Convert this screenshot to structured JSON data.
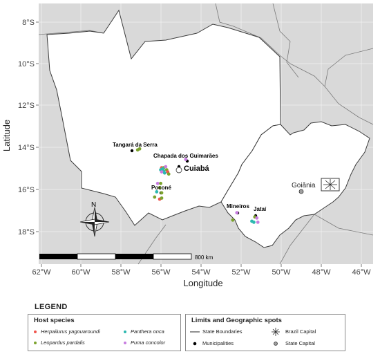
{
  "map": {
    "y_axis_title": "Latitude",
    "x_axis_title": "Longitude",
    "lat_ticks": [
      "8°S",
      "10°S",
      "12°S",
      "14°S",
      "16°S",
      "18°S"
    ],
    "lon_ticks": [
      "62°W",
      "60°W",
      "58°W",
      "56°W",
      "54°W",
      "52°W",
      "50°W",
      "48°W",
      "46°W"
    ],
    "colors": {
      "background": "#d9d9d9",
      "state": "#ffffff",
      "border": "#3a3a3a"
    },
    "places": [
      {
        "name": "Tangará da Serra",
        "lon": -57.5,
        "lat": -14.6
      },
      {
        "name": "Chapada dos Guimarães",
        "lon": -55.75,
        "lat": -15.45
      },
      {
        "name": "Cuiabá",
        "lon": -56.1,
        "lat": -15.6
      },
      {
        "name": "Poconé",
        "lon": -56.6,
        "lat": -16.25
      },
      {
        "name": "Mineiros",
        "lon": -52.55,
        "lat": -17.55
      },
      {
        "name": "Jataí",
        "lon": -51.7,
        "lat": -17.9
      },
      {
        "name": "Goiânia",
        "lon": -49.25,
        "lat": -16.7
      }
    ],
    "scale_bar_label": "800 km",
    "north_label": "N"
  },
  "occurrences": [
    {
      "species": "Leopardus pardalis",
      "lon": -57.2,
      "lat": -14.1
    },
    {
      "species": "Leopardus pardalis",
      "lon": -57.1,
      "lat": -14.05
    },
    {
      "species": "Herpailurus yagouaroundi",
      "lon": -56.0,
      "lat": -14.95
    },
    {
      "species": "Leopardus pardalis",
      "lon": -55.9,
      "lat": -14.95
    },
    {
      "species": "Puma concolor",
      "lon": -54.8,
      "lat": -14.55
    },
    {
      "species": "Panthera onca",
      "lon": -55.95,
      "lat": -15.0
    },
    {
      "species": "Panthera onca",
      "lon": -56.05,
      "lat": -15.05
    },
    {
      "species": "Puma concolor",
      "lon": -55.8,
      "lat": -14.9
    },
    {
      "species": "Panthera onca",
      "lon": -55.9,
      "lat": -15.1
    },
    {
      "species": "Leopardus pardalis",
      "lon": -55.75,
      "lat": -15.05
    },
    {
      "species": "Puma concolor",
      "lon": -56.0,
      "lat": -15.15
    },
    {
      "species": "Herpailurus yagouaroundi",
      "lon": -55.7,
      "lat": -15.15
    },
    {
      "species": "Panthera onca",
      "lon": -55.85,
      "lat": -15.2
    },
    {
      "species": "Leopardus pardalis",
      "lon": -55.65,
      "lat": -15.25
    },
    {
      "species": "Puma concolor",
      "lon": -56.2,
      "lat": -15.7
    },
    {
      "species": "Leopardus pardalis",
      "lon": -56.05,
      "lat": -15.7
    },
    {
      "species": "Leopardus pardalis",
      "lon": -56.1,
      "lat": -15.9
    },
    {
      "species": "Panthera onca",
      "lon": -56.25,
      "lat": -16.1
    },
    {
      "species": "Leopardus pardalis",
      "lon": -56.0,
      "lat": -16.15
    },
    {
      "species": "Leopardus pardalis",
      "lon": -56.35,
      "lat": -16.35
    },
    {
      "species": "Herpailurus yagouaroundi",
      "lon": -56.1,
      "lat": -16.45
    },
    {
      "species": "Leopardus pardalis",
      "lon": -56.0,
      "lat": -16.4
    },
    {
      "species": "Puma concolor",
      "lon": -52.25,
      "lat": -17.1
    },
    {
      "species": "Leopardus pardalis",
      "lon": -52.45,
      "lat": -17.45
    },
    {
      "species": "Panthera onca",
      "lon": -51.5,
      "lat": -17.5
    },
    {
      "species": "Leopardus pardalis",
      "lon": -51.35,
      "lat": -17.3
    },
    {
      "species": "Puma concolor",
      "lon": -51.25,
      "lat": -17.35
    },
    {
      "species": "Panthera onca",
      "lon": -51.4,
      "lat": -17.55
    },
    {
      "species": "Puma concolor",
      "lon": -51.2,
      "lat": -17.55
    }
  ],
  "legend": {
    "title": "LEGEND",
    "host_header": "Host species",
    "species": [
      {
        "name": "Herpailurus yagouaroundi",
        "color": "#f0554d"
      },
      {
        "name": "Leopardus pardalis",
        "color": "#7ca32e"
      },
      {
        "name": "Panthera onca",
        "color": "#2cb8b0"
      },
      {
        "name": "Puma concolor",
        "color": "#c77de0"
      }
    ],
    "limits_header": "Limits and Geographic spots",
    "items": [
      {
        "name": "State Boundaries",
        "symbol": "line"
      },
      {
        "name": "Municipalities",
        "symbol": "black-dot"
      },
      {
        "name": "Brazil Capital",
        "symbol": "star"
      },
      {
        "name": "State Capital",
        "symbol": "grey-dot"
      }
    ]
  }
}
